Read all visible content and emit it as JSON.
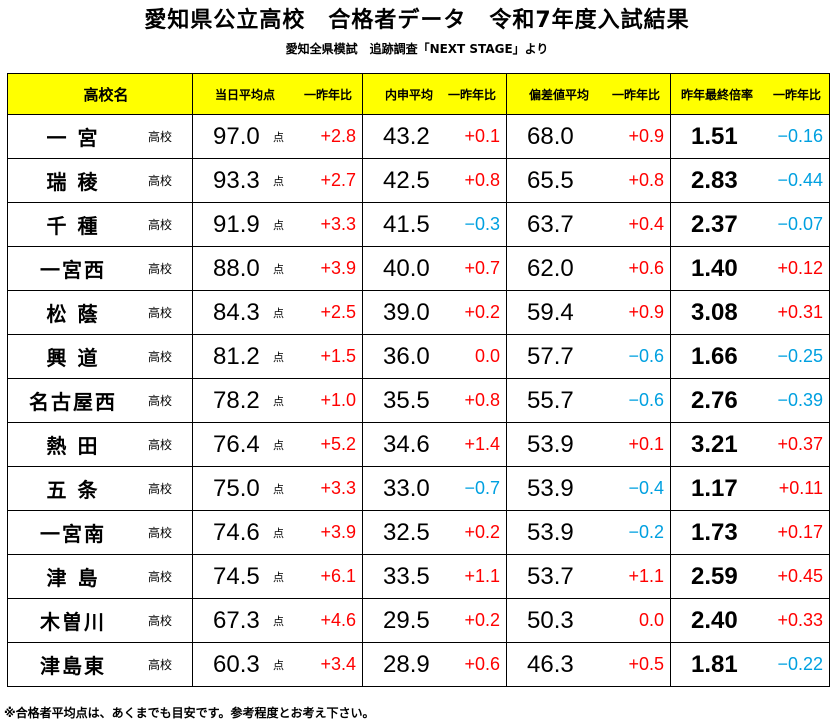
{
  "title": "愛知県公立高校　合格者データ　令和7年度入試結果",
  "subtitle": "愛知全県模試　追跡調査「NEXT STAGE」より",
  "headers": {
    "school": "高校名",
    "tojitsu": "当日平均点",
    "naishin": "内申平均",
    "hensachi": "偏差値平均",
    "bairitsu": "昨年最終倍率",
    "diff": "一昨年比"
  },
  "unit_kou": "高校",
  "unit_ten": "点",
  "colors": {
    "plus": "#ff0000",
    "minus": "#00a0e0",
    "zero": "#ff0000",
    "header": "#ffff00"
  },
  "rows": [
    {
      "name": "一 宮",
      "tojitsu": "97.0",
      "tojitsu_d": "+2.8",
      "naishin": "43.2",
      "naishin_d": "+0.1",
      "hensachi": "68.0",
      "hensachi_d": "+0.9",
      "bairitsu": "1.51",
      "bairitsu_d": "−0.16"
    },
    {
      "name": "瑞 稜",
      "tojitsu": "93.3",
      "tojitsu_d": "+2.7",
      "naishin": "42.5",
      "naishin_d": "+0.8",
      "hensachi": "65.5",
      "hensachi_d": "+0.8",
      "bairitsu": "2.83",
      "bairitsu_d": "−0.44"
    },
    {
      "name": "千 種",
      "tojitsu": "91.9",
      "tojitsu_d": "+3.3",
      "naishin": "41.5",
      "naishin_d": "−0.3",
      "hensachi": "63.7",
      "hensachi_d": "+0.4",
      "bairitsu": "2.37",
      "bairitsu_d": "−0.07"
    },
    {
      "name": "一宮西",
      "tojitsu": "88.0",
      "tojitsu_d": "+3.9",
      "naishin": "40.0",
      "naishin_d": "+0.7",
      "hensachi": "62.0",
      "hensachi_d": "+0.6",
      "bairitsu": "1.40",
      "bairitsu_d": "+0.12"
    },
    {
      "name": "松 蔭",
      "tojitsu": "84.3",
      "tojitsu_d": "+2.5",
      "naishin": "39.0",
      "naishin_d": "+0.2",
      "hensachi": "59.4",
      "hensachi_d": "+0.9",
      "bairitsu": "3.08",
      "bairitsu_d": "+0.31"
    },
    {
      "name": "興 道",
      "tojitsu": "81.2",
      "tojitsu_d": "+1.5",
      "naishin": "36.0",
      "naishin_d": "0.0",
      "hensachi": "57.7",
      "hensachi_d": "−0.6",
      "bairitsu": "1.66",
      "bairitsu_d": "−0.25"
    },
    {
      "name": "名古屋西",
      "tojitsu": "78.2",
      "tojitsu_d": "+1.0",
      "naishin": "35.5",
      "naishin_d": "+0.8",
      "hensachi": "55.7",
      "hensachi_d": "−0.6",
      "bairitsu": "2.76",
      "bairitsu_d": "−0.39"
    },
    {
      "name": "熱 田",
      "tojitsu": "76.4",
      "tojitsu_d": "+5.2",
      "naishin": "34.6",
      "naishin_d": "+1.4",
      "hensachi": "53.9",
      "hensachi_d": "+0.1",
      "bairitsu": "3.21",
      "bairitsu_d": "+0.37"
    },
    {
      "name": "五 条",
      "tojitsu": "75.0",
      "tojitsu_d": "+3.3",
      "naishin": "33.0",
      "naishin_d": "−0.7",
      "hensachi": "53.9",
      "hensachi_d": "−0.4",
      "bairitsu": "1.17",
      "bairitsu_d": "+0.11"
    },
    {
      "name": "一宮南",
      "tojitsu": "74.6",
      "tojitsu_d": "+3.9",
      "naishin": "32.5",
      "naishin_d": "+0.2",
      "hensachi": "53.9",
      "hensachi_d": "−0.2",
      "bairitsu": "1.73",
      "bairitsu_d": "+0.17"
    },
    {
      "name": "津 島",
      "tojitsu": "74.5",
      "tojitsu_d": "+6.1",
      "naishin": "33.5",
      "naishin_d": "+1.1",
      "hensachi": "53.7",
      "hensachi_d": "+1.1",
      "bairitsu": "2.59",
      "bairitsu_d": "+0.45"
    },
    {
      "name": "木曽川",
      "tojitsu": "67.3",
      "tojitsu_d": "+4.6",
      "naishin": "29.5",
      "naishin_d": "+0.2",
      "hensachi": "50.3",
      "hensachi_d": "0.0",
      "bairitsu": "2.40",
      "bairitsu_d": "+0.33"
    },
    {
      "name": "津島東",
      "tojitsu": "60.3",
      "tojitsu_d": "+3.4",
      "naishin": "28.9",
      "naishin_d": "+0.6",
      "hensachi": "46.3",
      "hensachi_d": "+0.5",
      "bairitsu": "1.81",
      "bairitsu_d": "−0.22"
    }
  ],
  "note": "※合格者平均点は、あくまでも目安です。参考程度とお考え下さい。"
}
